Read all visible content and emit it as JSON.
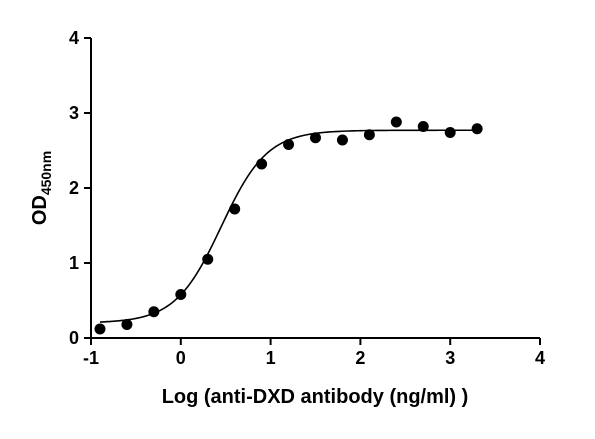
{
  "chart_data": {
    "type": "scatter",
    "title": "",
    "xlabel": "Log (anti-DXD antibody (ng/ml) )",
    "ylabel": "OD",
    "ylabel_subscript": "450nm",
    "xlim": [
      -1,
      4
    ],
    "ylim": [
      0,
      4
    ],
    "xticks": [
      "-1",
      "0",
      "1",
      "2",
      "3",
      "4"
    ],
    "yticks": [
      "0",
      "1",
      "2",
      "3",
      "4"
    ],
    "grid": false,
    "legend": "none",
    "marker_color": "#000000",
    "series": [
      {
        "x": [
          -0.9,
          -0.6,
          -0.3,
          0.0,
          0.3,
          0.6,
          0.9,
          1.2,
          1.5,
          1.8,
          2.1,
          2.4,
          2.7,
          3.0,
          3.3
        ],
        "y": [
          0.12,
          0.18,
          0.35,
          0.58,
          1.05,
          1.72,
          2.32,
          2.58,
          2.67,
          2.64,
          2.71,
          2.88,
          2.82,
          2.74,
          2.79
        ]
      }
    ],
    "fit_curve": {
      "model": "4PL",
      "bottom": 0.2,
      "top": 2.77,
      "logEC50": 0.45,
      "hill": 1.7
    }
  }
}
